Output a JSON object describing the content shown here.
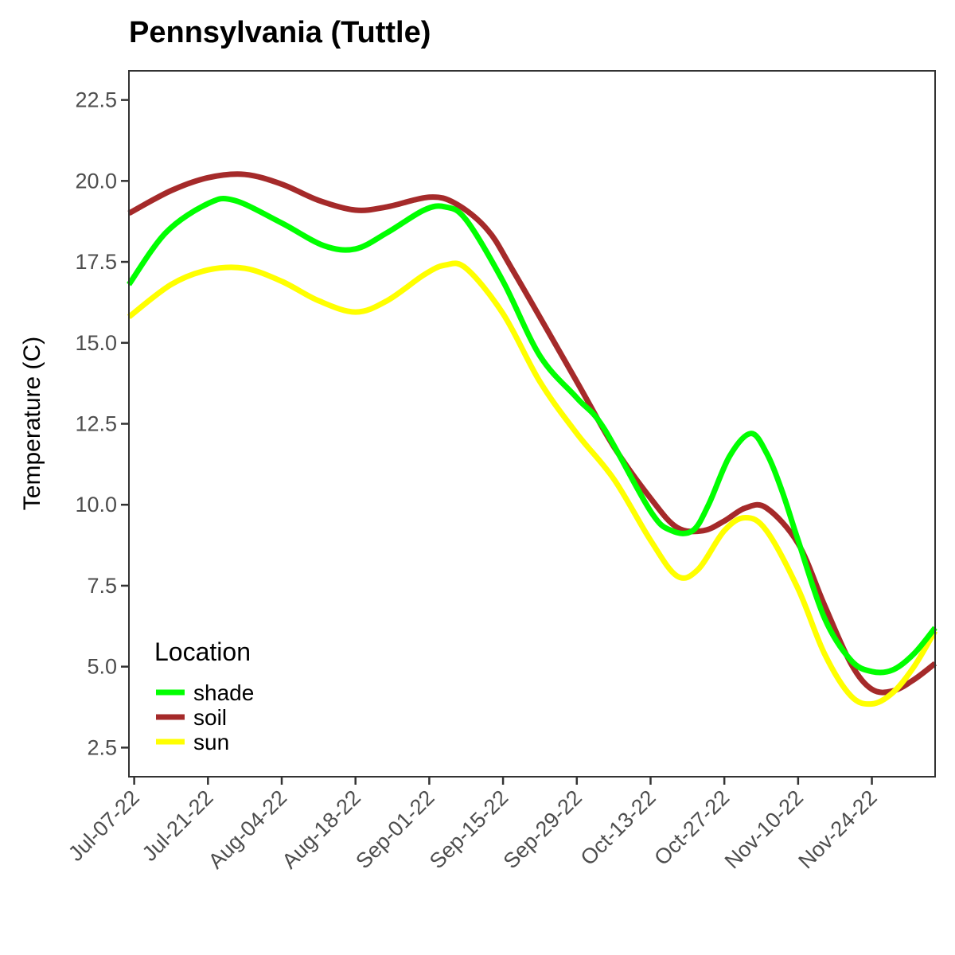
{
  "chart_data": {
    "type": "line",
    "title": "Pennsylvania (Tuttle)",
    "xlabel": "",
    "ylabel": "Temperature (C)",
    "ylim": [
      1.6,
      23.4
    ],
    "xlim": [
      "2022-07-06",
      "2022-12-06"
    ],
    "yticks": [
      2.5,
      5.0,
      7.5,
      10.0,
      12.5,
      15.0,
      17.5,
      20.0,
      22.5
    ],
    "ytick_labels": [
      "2.5",
      "5.0",
      "7.5",
      "10.0",
      "12.5",
      "15.0",
      "17.5",
      "20.0",
      "22.5"
    ],
    "xticks": [
      "2022-07-07",
      "2022-07-21",
      "2022-08-04",
      "2022-08-18",
      "2022-09-01",
      "2022-09-15",
      "2022-09-29",
      "2022-10-13",
      "2022-10-27",
      "2022-11-10",
      "2022-11-24"
    ],
    "xtick_labels": [
      "Jul-07-22",
      "Jul-21-22",
      "Aug-04-22",
      "Aug-18-22",
      "Sep-01-22",
      "Sep-15-22",
      "Sep-29-22",
      "Oct-13-22",
      "Oct-27-22",
      "Nov-10-22",
      "Nov-24-22"
    ],
    "grid": false,
    "legend": {
      "title": "Location",
      "position": "bottom-left inside"
    },
    "series": [
      {
        "name": "shade",
        "color": "#00ff00",
        "points": [
          [
            "2022-07-06",
            16.8
          ],
          [
            "2022-07-13",
            18.4
          ],
          [
            "2022-07-21",
            19.3
          ],
          [
            "2022-07-26",
            19.4
          ],
          [
            "2022-08-04",
            18.7
          ],
          [
            "2022-08-12",
            18.0
          ],
          [
            "2022-08-18",
            17.9
          ],
          [
            "2022-08-24",
            18.4
          ],
          [
            "2022-08-31",
            19.1
          ],
          [
            "2022-09-04",
            19.2
          ],
          [
            "2022-09-08",
            18.8
          ],
          [
            "2022-09-15",
            16.9
          ],
          [
            "2022-09-22",
            14.6
          ],
          [
            "2022-09-29",
            13.3
          ],
          [
            "2022-10-04",
            12.4
          ],
          [
            "2022-10-13",
            9.8
          ],
          [
            "2022-10-17",
            9.2
          ],
          [
            "2022-10-21",
            9.2
          ],
          [
            "2022-10-24",
            10.0
          ],
          [
            "2022-10-28",
            11.5
          ],
          [
            "2022-11-01",
            12.2
          ],
          [
            "2022-11-04",
            11.6
          ],
          [
            "2022-11-07",
            10.4
          ],
          [
            "2022-11-10",
            8.9
          ],
          [
            "2022-11-15",
            6.5
          ],
          [
            "2022-11-20",
            5.2
          ],
          [
            "2022-11-24",
            4.85
          ],
          [
            "2022-11-28",
            4.9
          ],
          [
            "2022-12-02",
            5.4
          ],
          [
            "2022-12-06",
            6.2
          ]
        ]
      },
      {
        "name": "soil",
        "color": "#a52a2a",
        "points": [
          [
            "2022-07-06",
            19.0
          ],
          [
            "2022-07-14",
            19.7
          ],
          [
            "2022-07-21",
            20.1
          ],
          [
            "2022-07-28",
            20.2
          ],
          [
            "2022-08-04",
            19.9
          ],
          [
            "2022-08-11",
            19.4
          ],
          [
            "2022-08-18",
            19.1
          ],
          [
            "2022-08-24",
            19.2
          ],
          [
            "2022-09-01",
            19.5
          ],
          [
            "2022-09-06",
            19.3
          ],
          [
            "2022-09-12",
            18.5
          ],
          [
            "2022-09-17",
            17.2
          ],
          [
            "2022-09-29",
            13.8
          ],
          [
            "2022-10-06",
            11.8
          ],
          [
            "2022-10-13",
            10.2
          ],
          [
            "2022-10-18",
            9.3
          ],
          [
            "2022-10-23",
            9.2
          ],
          [
            "2022-10-27",
            9.5
          ],
          [
            "2022-10-31",
            9.9
          ],
          [
            "2022-11-04",
            9.9
          ],
          [
            "2022-11-10",
            8.8
          ],
          [
            "2022-11-15",
            6.9
          ],
          [
            "2022-11-20",
            5.1
          ],
          [
            "2022-11-24",
            4.3
          ],
          [
            "2022-11-28",
            4.25
          ],
          [
            "2022-12-02",
            4.6
          ],
          [
            "2022-12-06",
            5.1
          ]
        ]
      },
      {
        "name": "sun",
        "color": "#ffff00",
        "points": [
          [
            "2022-07-06",
            15.8
          ],
          [
            "2022-07-14",
            16.8
          ],
          [
            "2022-07-21",
            17.25
          ],
          [
            "2022-07-28",
            17.3
          ],
          [
            "2022-08-04",
            16.9
          ],
          [
            "2022-08-11",
            16.3
          ],
          [
            "2022-08-18",
            15.95
          ],
          [
            "2022-08-24",
            16.3
          ],
          [
            "2022-08-31",
            17.1
          ],
          [
            "2022-09-04",
            17.4
          ],
          [
            "2022-09-08",
            17.3
          ],
          [
            "2022-09-15",
            15.9
          ],
          [
            "2022-09-22",
            13.8
          ],
          [
            "2022-09-29",
            12.2
          ],
          [
            "2022-10-06",
            10.8
          ],
          [
            "2022-10-13",
            8.9
          ],
          [
            "2022-10-18",
            7.8
          ],
          [
            "2022-10-22",
            8.0
          ],
          [
            "2022-10-27",
            9.2
          ],
          [
            "2022-10-31",
            9.6
          ],
          [
            "2022-11-04",
            9.2
          ],
          [
            "2022-11-10",
            7.4
          ],
          [
            "2022-11-15",
            5.4
          ],
          [
            "2022-11-20",
            4.1
          ],
          [
            "2022-11-24",
            3.85
          ],
          [
            "2022-11-28",
            4.2
          ],
          [
            "2022-12-02",
            5.0
          ],
          [
            "2022-12-06",
            6.1
          ]
        ]
      }
    ]
  }
}
